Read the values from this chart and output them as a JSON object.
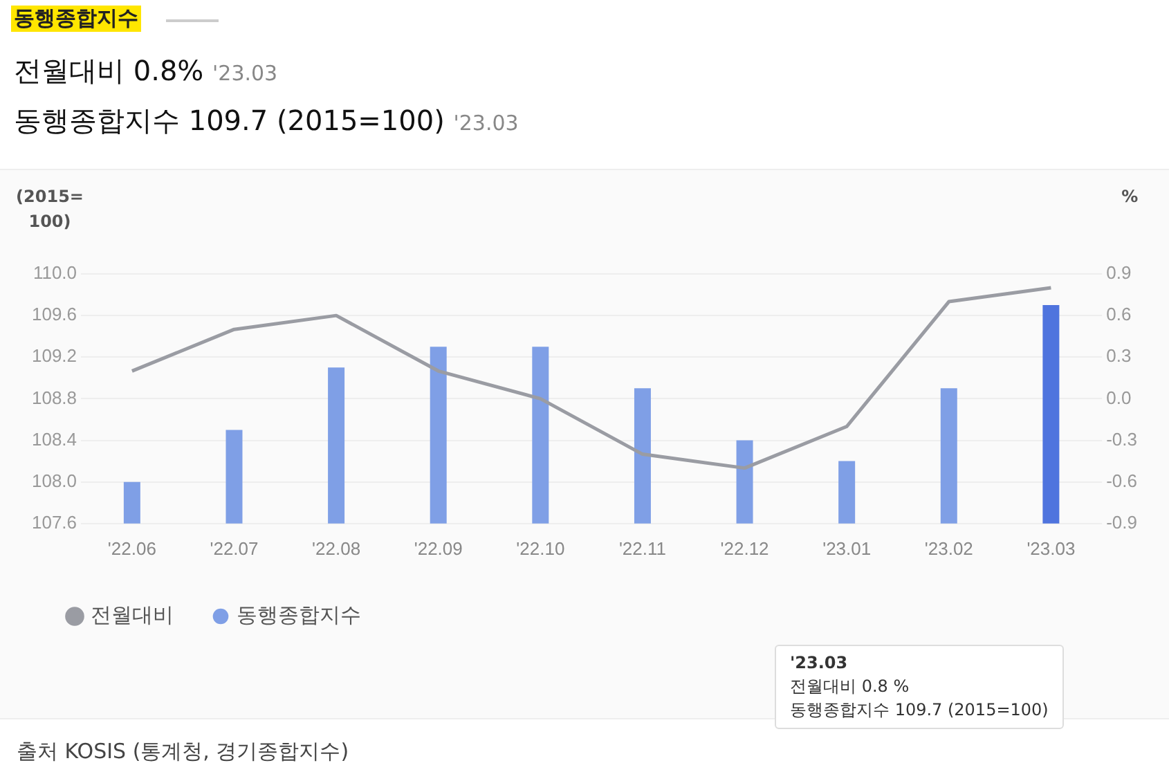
{
  "chart_data": {
    "type": "bar",
    "title": "동행종합지수",
    "ylabel": "(2015=100)",
    "y2label": "%",
    "categories": [
      "'22.06",
      "'22.07",
      "'22.08",
      "'22.09",
      "'22.10",
      "'22.11",
      "'22.12",
      "'23.01",
      "'23.02",
      "'23.03"
    ],
    "series": [
      {
        "name": "전월대비",
        "type": "line",
        "axis": "y2",
        "color": "#9a9ca3",
        "values": [
          0.2,
          0.5,
          0.6,
          0.2,
          0.0,
          -0.4,
          -0.5,
          -0.2,
          0.7,
          0.8
        ]
      },
      {
        "name": "동행종합지수",
        "color": "#7f9fe6",
        "colors": [
          "#7f9fe6",
          "#7f9fe6",
          "#7f9fe6",
          "#7f9fe6",
          "#7f9fe6",
          "#7f9fe6",
          "#7f9fe6",
          "#7f9fe6",
          "#7f9fe6",
          "#4f74de"
        ],
        "values": [
          108.0,
          108.5,
          109.1,
          109.3,
          109.3,
          108.9,
          108.4,
          108.2,
          108.9,
          109.7
        ]
      }
    ],
    "ylim": [
      107.6,
      110.0
    ],
    "yticks": [
      107.6,
      {
        "value": 108,
        "label": "108.0"
      },
      108.4,
      108.8,
      109.2,
      109.6,
      {
        "value": 110,
        "label": "110.0"
      }
    ],
    "y2lim": [
      -0.9,
      0.9
    ],
    "y2ticks": [
      {
        "value": -0.9,
        "label": "-0.9"
      },
      {
        "value": -0.6,
        "label": "-0.6"
      },
      {
        "value": -0.3,
        "label": "-0.3"
      },
      {
        "value": 0,
        "label": "0.0"
      },
      {
        "value": 0.3,
        "label": "0.3"
      },
      {
        "value": 0.6,
        "label": "0.6"
      },
      {
        "value": 0.9,
        "label": "0.9"
      }
    ],
    "grid": "y",
    "legend": "bottom",
    "marker": "none",
    "line_style": "solid",
    "annotations": [
      "전월대비 0.8% '23.03",
      "동행종합지수 109.7 (2015=100) '23.03",
      "'23.03",
      "전월대비 0.8 %",
      "동행종합지수 109.7 (2015=100)",
      "출처 KOSIS (통계청, 경기종합지수)"
    ]
  }
}
